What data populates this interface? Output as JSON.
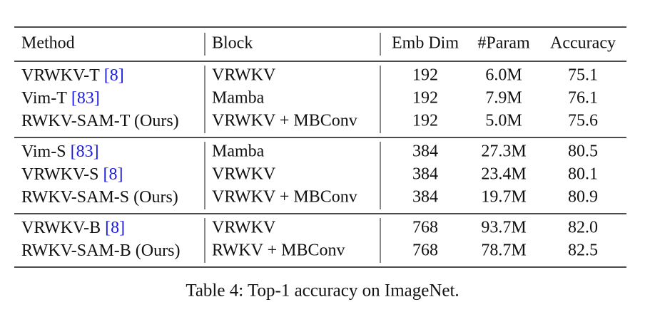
{
  "table": {
    "columns": [
      "Method",
      "Block",
      "Emb Dim",
      "#Param",
      "Accuracy"
    ],
    "groups": [
      [
        {
          "method": "VRWKV-T",
          "cite": "[8]",
          "block": "VRWKV",
          "emb_dim": "192",
          "param": "6.0M",
          "accuracy": "75.1"
        },
        {
          "method": "Vim-T",
          "cite": "[83]",
          "block": "Mamba",
          "emb_dim": "192",
          "param": "7.9M",
          "accuracy": "76.1"
        },
        {
          "method": "RWKV-SAM-T (Ours)",
          "block": "VRWKV + MBConv",
          "emb_dim": "192",
          "param": "5.0M",
          "accuracy": "75.6"
        }
      ],
      [
        {
          "method": "Vim-S",
          "cite": "[83]",
          "block": "Mamba",
          "emb_dim": "384",
          "param": "27.3M",
          "accuracy": "80.5"
        },
        {
          "method": "VRWKV-S",
          "cite": "[8]",
          "block": "VRWKV",
          "emb_dim": "384",
          "param": "23.4M",
          "accuracy": "80.1"
        },
        {
          "method": "RWKV-SAM-S (Ours)",
          "block": "VRWKV + MBConv",
          "emb_dim": "384",
          "param": "19.7M",
          "accuracy": "80.9"
        }
      ],
      [
        {
          "method": "VRWKV-B",
          "cite": "[8]",
          "block": "VRWKV",
          "emb_dim": "768",
          "param": "93.7M",
          "accuracy": "82.0"
        },
        {
          "method": "RWKV-SAM-B (Ours)",
          "block": "RWKV + MBConv",
          "emb_dim": "768",
          "param": "78.7M",
          "accuracy": "82.5"
        }
      ]
    ]
  },
  "caption": "Table 4: Top-1 accuracy on ImageNet."
}
